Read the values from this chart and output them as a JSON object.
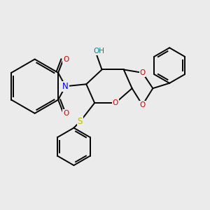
{
  "bg_color": "#ebebeb",
  "bond_color": "#000000",
  "bond_width": 1.4,
  "atom_colors": {
    "O": "#cc0000",
    "N": "#0000dd",
    "S": "#bbbb00",
    "H": "#008888",
    "C": "#000000"
  }
}
